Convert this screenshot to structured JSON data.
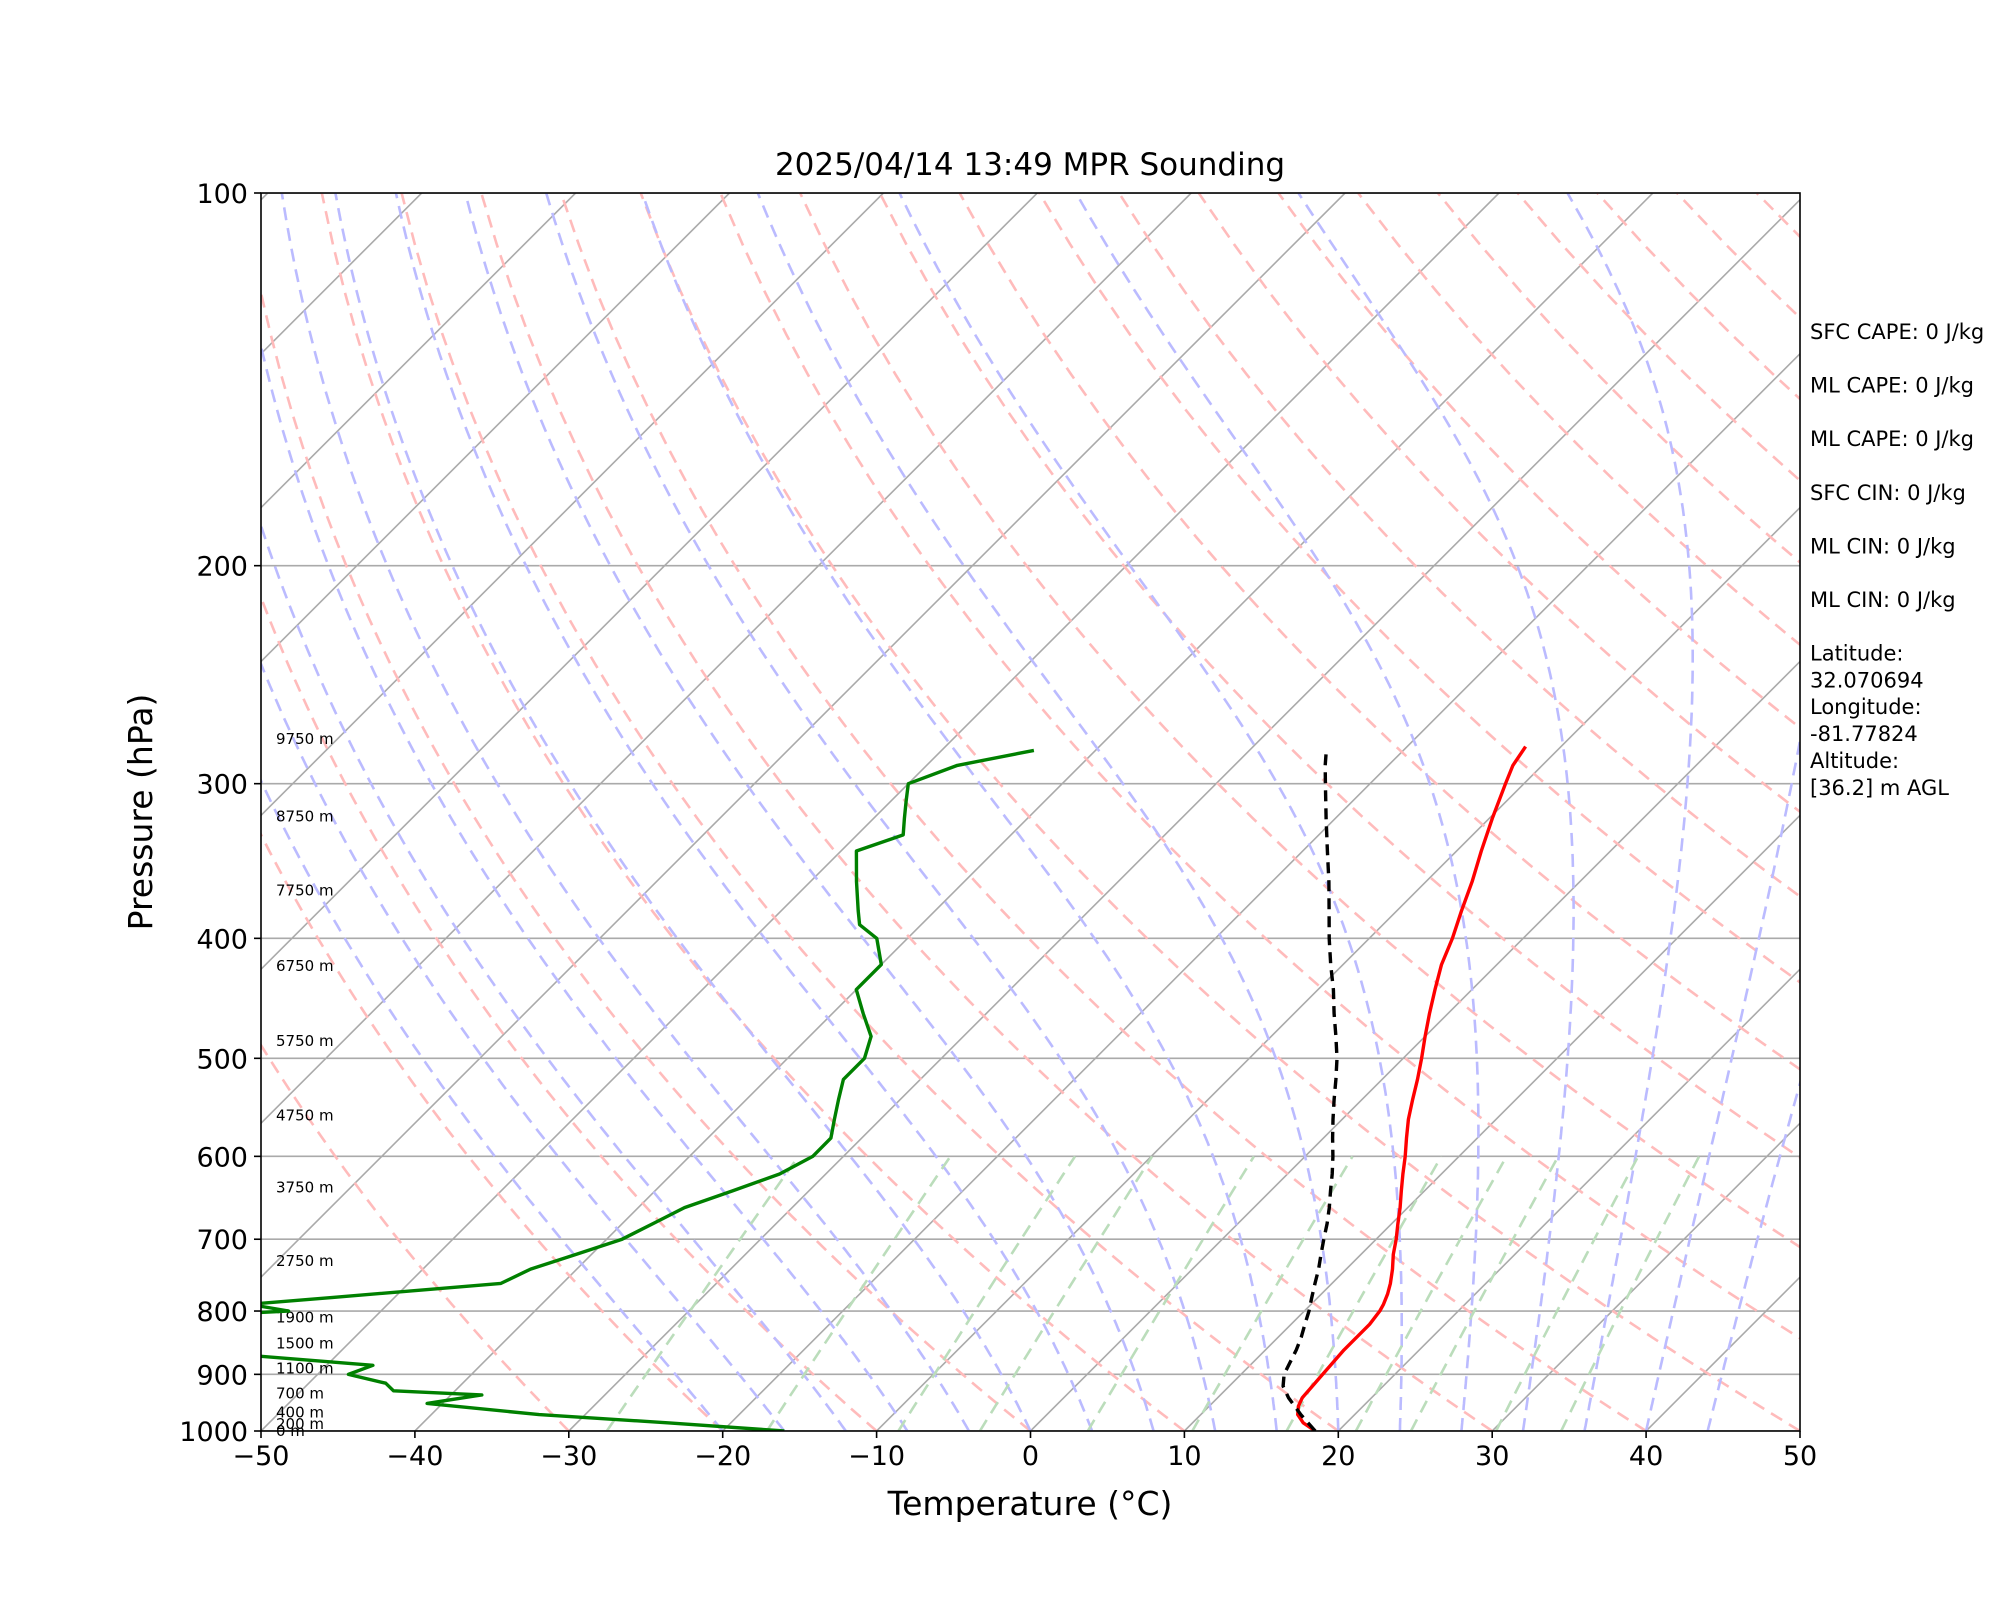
{
  "chart_data": {
    "type": "skew-t",
    "title": "2025/04/14 13:49 MPR Sounding",
    "xlabel": "Temperature (°C)",
    "ylabel": "Pressure (hPa)",
    "xlim": [
      -50,
      50
    ],
    "ylim": [
      1000,
      100
    ],
    "x_ticks": [
      -50,
      -40,
      -30,
      -20,
      -10,
      0,
      10,
      20,
      30,
      40,
      50
    ],
    "x_tick_labels": [
      "−50",
      "−40",
      "−30",
      "−20",
      "−10",
      "0",
      "10",
      "20",
      "30",
      "40",
      "50"
    ],
    "y_ticks": [
      100,
      200,
      300,
      400,
      500,
      600,
      700,
      800,
      900,
      1000
    ],
    "y_tick_labels": [
      "100",
      "200",
      "300",
      "400",
      "500",
      "600",
      "700",
      "800",
      "900",
      "1000"
    ],
    "grid": true,
    "series": [
      {
        "key": "temperature",
        "color": "#ff0000",
        "style": "solid",
        "points": [
          [
            1000,
            18.5
          ],
          [
            985,
            17.2
          ],
          [
            970,
            16.3
          ],
          [
            955,
            15.8
          ],
          [
            940,
            15.5
          ],
          [
            920,
            15.4
          ],
          [
            900,
            15.3
          ],
          [
            880,
            15.2
          ],
          [
            860,
            15.1
          ],
          [
            840,
            15.1
          ],
          [
            820,
            15.1
          ],
          [
            800,
            14.9
          ],
          [
            790,
            14.7
          ],
          [
            775,
            14.3
          ],
          [
            760,
            13.8
          ],
          [
            740,
            13.0
          ],
          [
            720,
            12.1
          ],
          [
            700,
            11.3
          ],
          [
            680,
            10.4
          ],
          [
            660,
            9.5
          ],
          [
            640,
            8.5
          ],
          [
            620,
            7.5
          ],
          [
            600,
            6.5
          ],
          [
            580,
            5.4
          ],
          [
            560,
            4.3
          ],
          [
            540,
            3.3
          ],
          [
            520,
            2.3
          ],
          [
            500,
            1.2
          ],
          [
            480,
            0.0
          ],
          [
            460,
            -1.2
          ],
          [
            440,
            -2.4
          ],
          [
            420,
            -3.6
          ],
          [
            400,
            -4.6
          ],
          [
            380,
            -5.8
          ],
          [
            360,
            -7.0
          ],
          [
            340,
            -8.4
          ],
          [
            320,
            -9.8
          ],
          [
            300,
            -11.2
          ],
          [
            290,
            -11.9
          ],
          [
            280,
            -12.3
          ]
        ]
      },
      {
        "key": "dewpoint",
        "color": "#008000",
        "style": "solid",
        "points": [
          [
            1000,
            -16
          ],
          [
            985,
            -24
          ],
          [
            970,
            -33
          ],
          [
            950,
            -41
          ],
          [
            935,
            -38
          ],
          [
            928,
            -44
          ],
          [
            915,
            -45
          ],
          [
            900,
            -48
          ],
          [
            885,
            -47
          ],
          [
            870,
            -55
          ],
          [
            840,
            -62
          ],
          [
            820,
            -65
          ],
          [
            810,
            -64
          ],
          [
            800,
            -56
          ],
          [
            790,
            -59
          ],
          [
            780,
            -54
          ],
          [
            760,
            -44
          ],
          [
            740,
            -43
          ],
          [
            720,
            -41
          ],
          [
            700,
            -39
          ],
          [
            680,
            -38
          ],
          [
            660,
            -37
          ],
          [
            640,
            -35
          ],
          [
            620,
            -33
          ],
          [
            600,
            -32
          ],
          [
            580,
            -32
          ],
          [
            560,
            -33
          ],
          [
            540,
            -34
          ],
          [
            520,
            -35
          ],
          [
            500,
            -35
          ],
          [
            480,
            -36
          ],
          [
            460,
            -38
          ],
          [
            440,
            -40
          ],
          [
            420,
            -40
          ],
          [
            400,
            -42
          ],
          [
            390,
            -44
          ],
          [
            380,
            -45
          ],
          [
            360,
            -47
          ],
          [
            340,
            -49
          ],
          [
            330,
            -47
          ],
          [
            320,
            -48
          ],
          [
            310,
            -49
          ],
          [
            300,
            -50
          ],
          [
            290,
            -48
          ],
          [
            282,
            -44
          ]
        ]
      },
      {
        "key": "parcel",
        "color": "#000000",
        "style": "dashed",
        "points": [
          [
            1000,
            18.5
          ],
          [
            970,
            16.5
          ],
          [
            940,
            14.6
          ],
          [
            920,
            13.5
          ],
          [
            900,
            12.8
          ],
          [
            880,
            12.4
          ],
          [
            860,
            12.0
          ],
          [
            840,
            11.5
          ],
          [
            820,
            10.9
          ],
          [
            800,
            10.3
          ],
          [
            780,
            9.6
          ],
          [
            760,
            8.9
          ],
          [
            740,
            8.2
          ],
          [
            720,
            7.4
          ],
          [
            700,
            6.6
          ],
          [
            680,
            5.8
          ],
          [
            660,
            4.9
          ],
          [
            640,
            3.9
          ],
          [
            620,
            2.9
          ],
          [
            600,
            1.8
          ],
          [
            580,
            0.6
          ],
          [
            560,
            -0.6
          ],
          [
            540,
            -1.8
          ],
          [
            520,
            -3.0
          ],
          [
            500,
            -4.3
          ],
          [
            480,
            -5.8
          ],
          [
            460,
            -7.4
          ],
          [
            440,
            -9.0
          ],
          [
            420,
            -10.8
          ],
          [
            400,
            -12.6
          ],
          [
            380,
            -14.4
          ],
          [
            360,
            -16.3
          ],
          [
            340,
            -18.4
          ],
          [
            320,
            -20.6
          ],
          [
            300,
            -22.9
          ],
          [
            290,
            -24.1
          ],
          [
            282,
            -25.0
          ]
        ]
      }
    ],
    "height_labels": [
      {
        "text": "9750 m",
        "p": 276
      },
      {
        "text": "8750 m",
        "p": 319
      },
      {
        "text": "7750 m",
        "p": 366
      },
      {
        "text": "6750 m",
        "p": 421
      },
      {
        "text": "5750 m",
        "p": 484
      },
      {
        "text": "4750 m",
        "p": 556
      },
      {
        "text": "3750 m",
        "p": 636
      },
      {
        "text": "2750 m",
        "p": 729
      },
      {
        "text": "1900 m",
        "p": 810
      },
      {
        "text": "1500 m",
        "p": 850
      },
      {
        "text": "1100 m",
        "p": 890
      },
      {
        "text": "700 m",
        "p": 933
      },
      {
        "text": "400 m",
        "p": 966
      },
      {
        "text": "200 m",
        "p": 987
      },
      {
        "text": "0 m",
        "p": 1000
      }
    ],
    "stats": [
      {
        "lines": [
          "SFC CAPE: 0 J/kg"
        ]
      },
      {
        "lines": [
          "ML CAPE: 0 J/kg"
        ]
      },
      {
        "lines": [
          "ML CAPE: 0 J/kg"
        ]
      },
      {
        "lines": [
          "SFC CIN: 0 J/kg"
        ]
      },
      {
        "lines": [
          "ML CIN: 0 J/kg"
        ]
      },
      {
        "lines": [
          "ML CIN: 0 J/kg"
        ]
      },
      {
        "lines": [
          "Latitude:",
          "32.070694"
        ]
      },
      {
        "lines": [
          "Longitude:",
          "-81.77824"
        ]
      },
      {
        "lines": [
          "Altitude:",
          "[36.2] m AGL"
        ]
      }
    ],
    "reference_lines": {
      "isotherm_color": "#aaaaaa",
      "dry_adiabat_color": "#ffbbbb",
      "moist_adiabat_color": "#bbbbff",
      "mixing_ratio_color": "#bbddbb"
    }
  }
}
